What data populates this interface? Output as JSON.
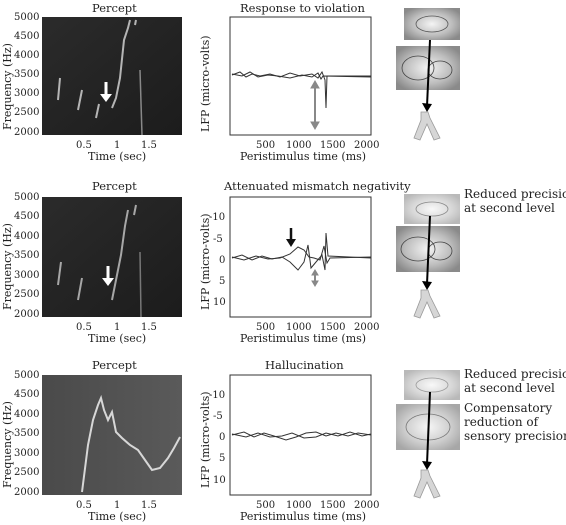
{
  "rows": [
    {
      "left_title": "Percept",
      "mid_title": "Response to violation",
      "left_ylabel": "Frequency (Hz)",
      "left_xlabel": "Time (sec)",
      "left_yticks": [
        "5000",
        "4500",
        "4000",
        "3500",
        "3000",
        "2500",
        "2000"
      ],
      "left_xticks": [
        "0.5",
        "1",
        "1.5"
      ],
      "mid_ylabel": "LFP (micro-volts)",
      "mid_xlabel": "Peristimulus time (ms)",
      "mid_yticks": [],
      "mid_xticks": [
        "500",
        "1000",
        "1500",
        "2000"
      ],
      "notes": []
    },
    {
      "left_title": "Percept",
      "mid_title": "Attenuated mismatch negativity",
      "left_ylabel": "Frequency (Hz)",
      "left_xlabel": "Time (sec)",
      "left_yticks": [
        "5000",
        "4500",
        "4000",
        "3500",
        "3000",
        "2500",
        "2000"
      ],
      "left_xticks": [
        "0.5",
        "1",
        "1.5"
      ],
      "mid_ylabel": "LFP (micro-volts)",
      "mid_xlabel": "Peristimulus time (ms)",
      "mid_yticks": [
        "-10",
        "-5",
        "0",
        "5",
        "10"
      ],
      "mid_xticks": [
        "500",
        "1000",
        "1500",
        "2000"
      ],
      "notes": [
        "Reduced precision",
        "at second level"
      ]
    },
    {
      "left_title": "Percept",
      "mid_title": "Hallucination",
      "left_ylabel": "Frequency (Hz)",
      "left_xlabel": "Time (sec)",
      "left_yticks": [
        "5000",
        "4500",
        "4000",
        "3500",
        "3000",
        "2500",
        "2000"
      ],
      "left_xticks": [
        "0.5",
        "1",
        "1.5"
      ],
      "mid_ylabel": "LFP (micro-volts)",
      "mid_xlabel": "Peristimulus time (ms)",
      "mid_yticks": [
        "-10",
        "-5",
        "0",
        "5",
        "10"
      ],
      "mid_xticks": [
        "500",
        "1000",
        "1500",
        "2000"
      ],
      "notes": [
        "Reduced precision",
        "at second level",
        "Compensatory",
        "reduction of",
        "sensory precision"
      ]
    }
  ]
}
